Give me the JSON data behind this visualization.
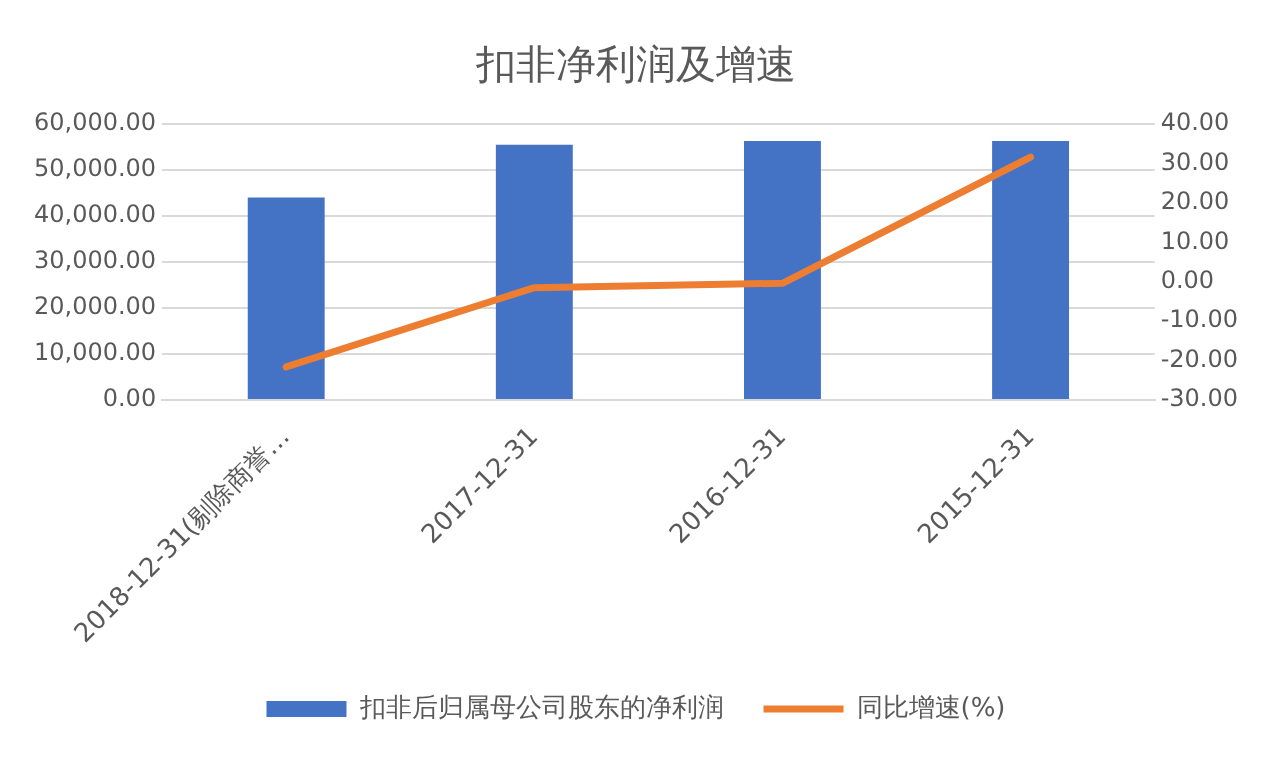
{
  "chart_data": {
    "type": "bar",
    "title": "扣非净利润及增速",
    "categories": [
      "2018-12-31(剔除商誉…",
      "2017-12-31",
      "2016-12-31",
      "2015-12-31"
    ],
    "series": [
      {
        "name": "扣非后归属母公司股东的净利润",
        "color": "#4472c4",
        "values": [
          44000,
          55500,
          56300,
          56300
        ]
      },
      {
        "name": "同比增速(%)",
        "type": "line",
        "axis": "y2",
        "color": "#ed7d31",
        "values": [
          -21.6,
          -1.5,
          -0.4,
          31.6
        ]
      }
    ],
    "ylim": [
      0,
      60000
    ],
    "yticks": [
      {
        "value": 0,
        "label": "0.00"
      },
      {
        "value": 10000,
        "label": "10,000.00"
      },
      {
        "value": 20000,
        "label": "20,000.00"
      },
      {
        "value": 30000,
        "label": "30,000.00"
      },
      {
        "value": 40000,
        "label": "40,000.00"
      },
      {
        "value": 50000,
        "label": "50,000.00"
      },
      {
        "value": 60000,
        "label": "60,000.00"
      }
    ],
    "y2lim": [
      -30,
      40
    ],
    "y2ticks": [
      {
        "value": -30,
        "label": "-30.00"
      },
      {
        "value": -20,
        "label": "-20.00"
      },
      {
        "value": -10,
        "label": "-10.00"
      },
      {
        "value": 0,
        "label": "0.00"
      },
      {
        "value": 10,
        "label": "10.00"
      },
      {
        "value": 20,
        "label": "20.00"
      },
      {
        "value": 30,
        "label": "30.00"
      },
      {
        "value": 40,
        "label": "40.00"
      }
    ],
    "grid": "y",
    "legend": "bottom",
    "marker": "none",
    "line_style": "solid"
  }
}
